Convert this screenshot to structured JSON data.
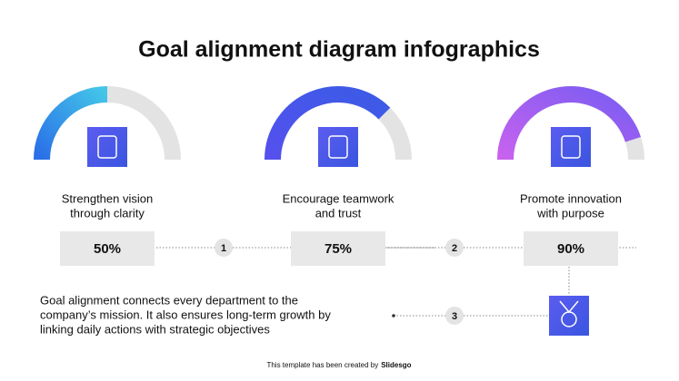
{
  "title": "Goal alignment diagram infographics",
  "goals": [
    {
      "label": [
        "Strengthen vision",
        "through clarity"
      ],
      "value": 50,
      "value_label": "50%"
    },
    {
      "label": [
        "Encourage teamwork",
        "and trust"
      ],
      "value": 75,
      "value_label": "75%"
    },
    {
      "label": [
        "Promote innovation",
        "with purpose"
      ],
      "value": 90,
      "value_label": "90%"
    }
  ],
  "steps": [
    "1",
    "2",
    "3"
  ],
  "description": [
    "Goal alignment connects every department to the",
    "company’s mission. It also ensures long-term growth by",
    "linking daily actions with strategic objectives"
  ],
  "footer": {
    "text": "This template has been created by",
    "brand": "Slidesgo"
  }
}
